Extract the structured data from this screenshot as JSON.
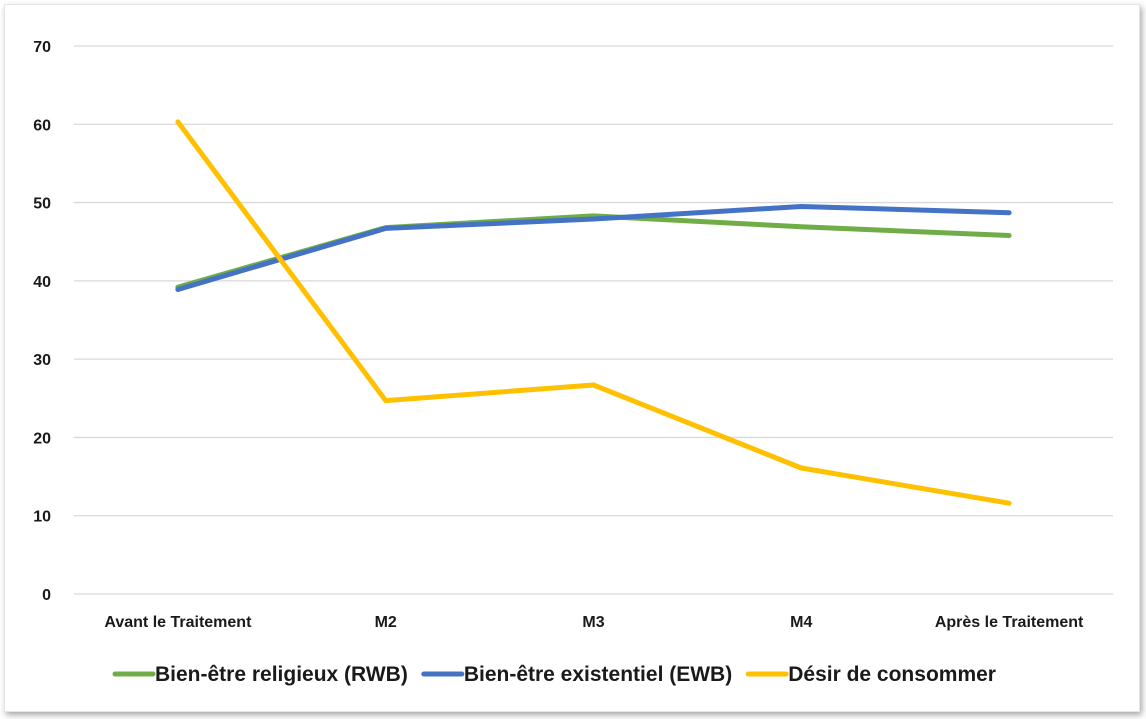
{
  "chart_data": {
    "type": "line",
    "title": "",
    "xlabel": "",
    "ylabel": "",
    "categories": [
      "Avant le Traitement",
      "M2",
      "M3",
      "M4",
      "Après le Traitement"
    ],
    "ylim": [
      0,
      70
    ],
    "yticks": [
      0,
      10,
      20,
      30,
      40,
      50,
      60,
      70
    ],
    "grid": true,
    "legend_position": "bottom",
    "series": [
      {
        "name": "Bien-être religieux (RWB)",
        "color": "#70ad47",
        "values": [
          39.2,
          46.8,
          48.3,
          46.9,
          45.8
        ]
      },
      {
        "name": "Bien-être existentiel (EWB)",
        "color": "#4472c4",
        "values": [
          38.9,
          46.7,
          47.9,
          49.5,
          48.7
        ]
      },
      {
        "name": "Désir de consommer",
        "color": "#ffc000",
        "values": [
          60.3,
          24.7,
          26.7,
          16.1,
          11.6
        ]
      }
    ]
  }
}
